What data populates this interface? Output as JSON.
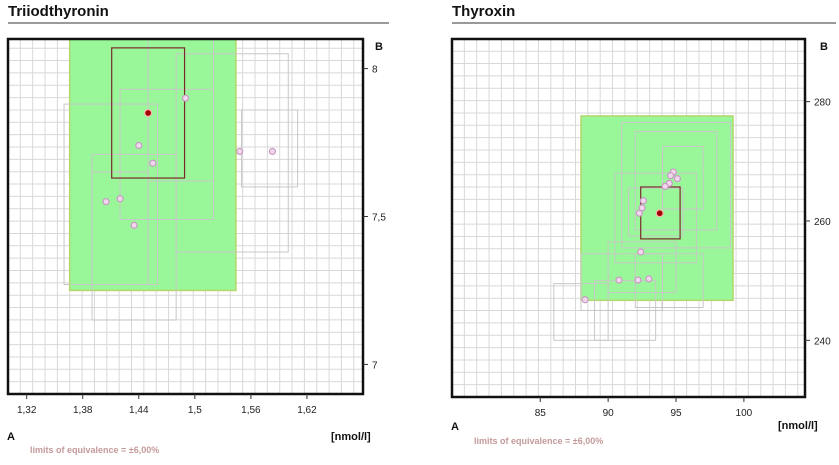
{
  "colors": {
    "grid": "#d8d8d8",
    "frame": "#111111",
    "acceptance_fill": "#99f799",
    "acceptance_edge": "#b5d66a",
    "box_edge": "#c8c8c8",
    "current_box": "#7a2a2a",
    "point_fill": "#f0d8ee",
    "point_edge": "#c99ac4",
    "current_point": "#a00000",
    "limits_text": "#c49a9a"
  },
  "panels": [
    {
      "title": "Triiodthyronin",
      "label_a": "A",
      "label_b": "B",
      "unit": "[nmol/l]",
      "limits_text": "limits of equivalence = ±6,00%"
    },
    {
      "title": "Thyroxin",
      "label_a": "A",
      "label_b": "B",
      "unit": "[nmol/l]",
      "limits_text": "limits of equivalence = ±6,00%"
    }
  ],
  "chart_data": [
    {
      "type": "scatter",
      "title": "Triiodthyronin",
      "xlabel": "A",
      "ylabel": "B",
      "unit": "[nmol/l]",
      "xlim": [
        1.3,
        1.68
      ],
      "ylim": [
        6.9,
        8.1
      ],
      "x_ticks": [
        1.32,
        1.38,
        1.44,
        1.5,
        1.56,
        1.62
      ],
      "x_tick_labels": [
        "1,32",
        "1,38",
        "1,44",
        "1,5",
        "1,56",
        "1,62"
      ],
      "y_ticks": [
        7,
        7.5,
        8
      ],
      "y_tick_labels": [
        "7",
        "7,5",
        "8"
      ],
      "acceptance_region": {
        "x": [
          1.366,
          1.544
        ],
        "y": [
          7.25,
          8.17
        ]
      },
      "current_point": {
        "x": 1.45,
        "y": 7.85
      },
      "current_box": {
        "x": [
          1.411,
          1.489
        ],
        "y": [
          7.63,
          8.07
        ]
      },
      "points": [
        {
          "x": 1.49,
          "y": 7.9
        },
        {
          "x": 1.44,
          "y": 7.74
        },
        {
          "x": 1.455,
          "y": 7.68
        },
        {
          "x": 1.42,
          "y": 7.56
        },
        {
          "x": 1.405,
          "y": 7.55
        },
        {
          "x": 1.435,
          "y": 7.47
        },
        {
          "x": 1.548,
          "y": 7.72
        },
        {
          "x": 1.583,
          "y": 7.72
        }
      ],
      "boxes": [
        {
          "x": [
            1.36,
            1.46
          ],
          "y": [
            7.27,
            7.88
          ]
        },
        {
          "x": [
            1.39,
            1.48
          ],
          "y": [
            7.15,
            7.71
          ]
        },
        {
          "x": [
            1.39,
            1.45
          ],
          "y": [
            7.27,
            7.65
          ]
        },
        {
          "x": [
            1.45,
            1.52
          ],
          "y": [
            7.62,
            8.14
          ]
        },
        {
          "x": [
            1.42,
            1.52
          ],
          "y": [
            7.49,
            7.93
          ]
        },
        {
          "x": [
            1.48,
            1.6
          ],
          "y": [
            7.38,
            8.05
          ]
        },
        {
          "x": [
            1.55,
            1.61
          ],
          "y": [
            7.6,
            7.86
          ]
        }
      ]
    },
    {
      "type": "scatter",
      "title": "Thyroxin",
      "xlabel": "A",
      "ylabel": "B",
      "unit": "[nmol/l]",
      "xlim": [
        78.5,
        104.5
      ],
      "ylim": [
        230.5,
        290.5
      ],
      "x_ticks": [
        85,
        90,
        95,
        100
      ],
      "x_tick_labels": [
        "85",
        "90",
        "95",
        "100"
      ],
      "y_ticks": [
        240,
        260,
        280
      ],
      "y_tick_labels": [
        "240",
        "260",
        "280"
      ],
      "acceptance_region": {
        "x": [
          88.0,
          99.2
        ],
        "y": [
          246.7,
          277.6
        ]
      },
      "current_point": {
        "x": 93.8,
        "y": 261.3
      },
      "current_box": {
        "x": [
          92.4,
          95.3
        ],
        "y": [
          257.0,
          265.7
        ]
      },
      "points": [
        {
          "x": 94.8,
          "y": 268.2
        },
        {
          "x": 94.6,
          "y": 267.6
        },
        {
          "x": 95.1,
          "y": 267.1
        },
        {
          "x": 94.5,
          "y": 266.3
        },
        {
          "x": 94.2,
          "y": 265.8
        },
        {
          "x": 92.6,
          "y": 263.4
        },
        {
          "x": 92.5,
          "y": 262.2
        },
        {
          "x": 92.3,
          "y": 261.3
        },
        {
          "x": 92.4,
          "y": 254.8
        },
        {
          "x": 90.8,
          "y": 250.1
        },
        {
          "x": 92.2,
          "y": 250.1
        },
        {
          "x": 93.0,
          "y": 250.3
        },
        {
          "x": 88.3,
          "y": 246.8
        }
      ],
      "boxes": [
        {
          "x": [
            91.0,
            99.0
          ],
          "y": [
            255.5,
            276.5
          ]
        },
        {
          "x": [
            92.0,
            98.0
          ],
          "y": [
            258.5,
            275.0
          ]
        },
        {
          "x": [
            94.0,
            97.0
          ],
          "y": [
            262.0,
            272.5
          ]
        },
        {
          "x": [
            90.5,
            96.5
          ],
          "y": [
            253.0,
            268.0
          ]
        },
        {
          "x": [
            91.5,
            95.5
          ],
          "y": [
            257.5,
            265.5
          ]
        },
        {
          "x": [
            88.0,
            94.0
          ],
          "y": [
            245.0,
            254.5
          ]
        },
        {
          "x": [
            90.0,
            95.0
          ],
          "y": [
            248.0,
            256.5
          ]
        },
        {
          "x": [
            92.0,
            97.0
          ],
          "y": [
            245.5,
            254.5
          ]
        },
        {
          "x": [
            89.0,
            93.5
          ],
          "y": [
            240.0,
            250.0
          ]
        },
        {
          "x": [
            86.0,
            90.0
          ],
          "y": [
            240.0,
            249.5
          ]
        }
      ]
    }
  ]
}
